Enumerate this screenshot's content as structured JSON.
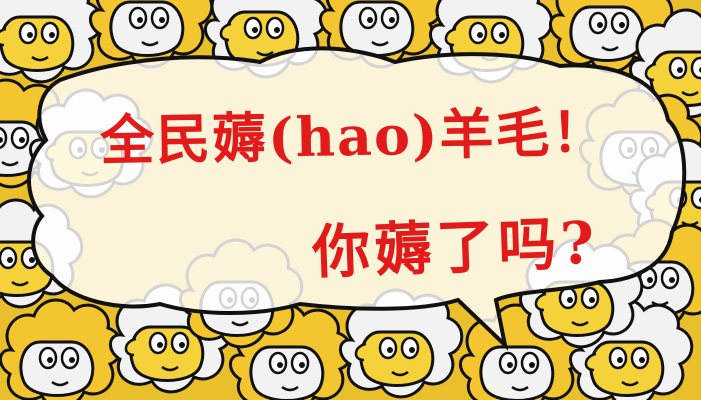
{
  "headline": "全民薅(hao)羊毛！",
  "subline": "你薅了吗?",
  "colors": {
    "text": "#e21a1a",
    "sheep_wool_white": "#f2f2f2",
    "sheep_wool_yellow": "#f3c52f",
    "sheep_face": "#f5d13a",
    "outline": "#111111",
    "bubble_fill": "#ffffff"
  },
  "icons": [
    "sheep-icon",
    "speech-bubble"
  ]
}
